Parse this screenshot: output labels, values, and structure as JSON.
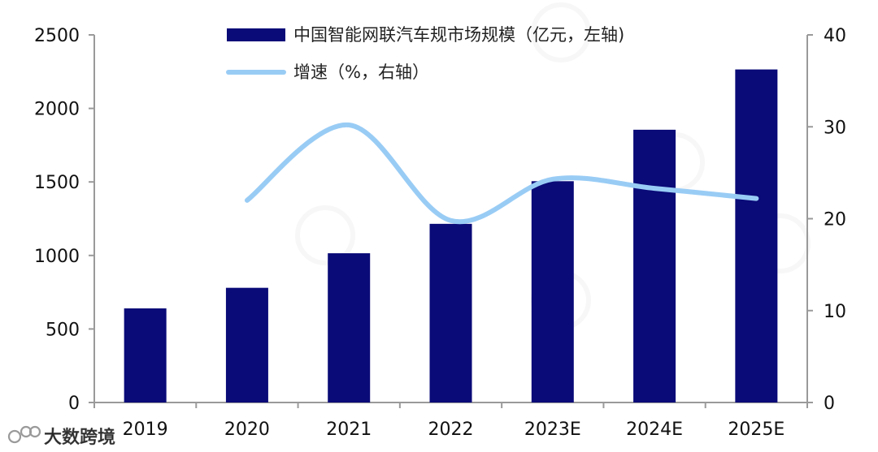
{
  "chart_data": {
    "type": "bar",
    "categories": [
      "2019",
      "2020",
      "2021",
      "2022",
      "2023E",
      "2024E",
      "2025E"
    ],
    "series": [
      {
        "name": "中国智能网联汽车规市场规模（亿元，左轴)",
        "type": "bar",
        "axis": "left",
        "color": "#0a0a78",
        "values": [
          640,
          780,
          1015,
          1215,
          1505,
          1855,
          2265
        ]
      },
      {
        "name": "增速（%，右轴）",
        "type": "line",
        "axis": "right",
        "color": "#99ccf5",
        "values": [
          null,
          22.0,
          30.2,
          19.8,
          24.3,
          23.3,
          22.2
        ]
      }
    ],
    "y_left": {
      "min": 0,
      "max": 2500,
      "ticks": [
        "0",
        "500",
        "1000",
        "1500",
        "2000",
        "2500"
      ]
    },
    "y_right": {
      "min": 0,
      "max": 40,
      "ticks": [
        "0",
        "10",
        "20",
        "30",
        "40"
      ]
    },
    "legend_position": "top-center",
    "grid": false
  },
  "watermark": {
    "text": "大数跨境"
  }
}
